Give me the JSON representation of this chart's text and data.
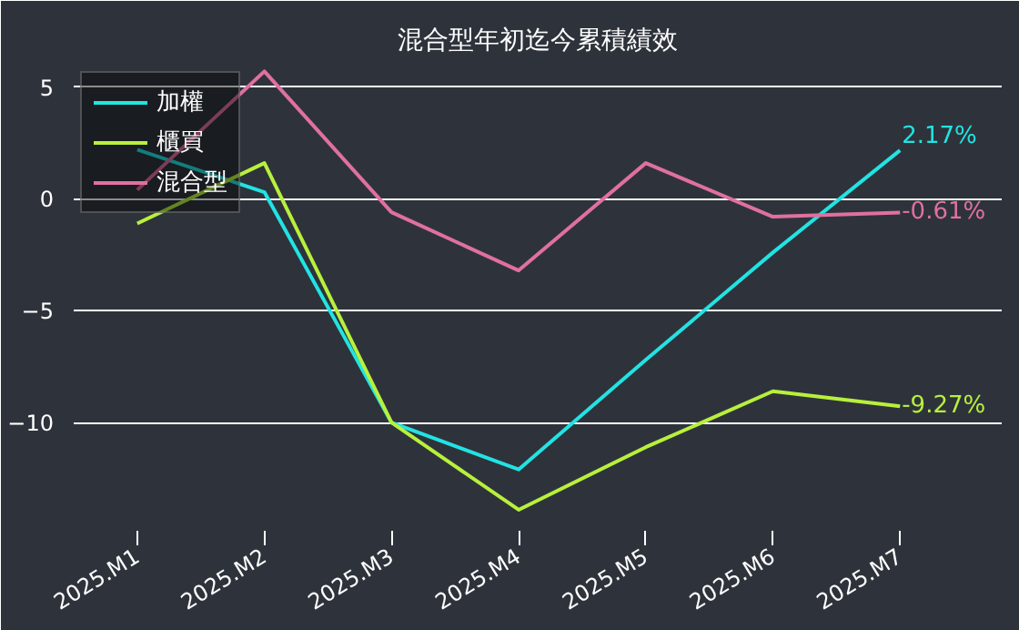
{
  "chart_data": {
    "type": "line",
    "title": "混合型年初迄今累積績效",
    "categories": [
      "2025.M1",
      "2025.M2",
      "2025.M3",
      "2025.M4",
      "2025.M5",
      "2025.M6",
      "2025.M7"
    ],
    "series": [
      {
        "name": "加權",
        "color": "#22e3e3",
        "values": [
          2.2,
          0.3,
          -10.0,
          -12.1,
          -7.2,
          -2.4,
          2.17
        ],
        "value_labels": [
          null,
          null,
          null,
          null,
          null,
          null,
          "2.17%"
        ]
      },
      {
        "name": "櫃買",
        "color": "#b8f03c",
        "values": [
          -1.1,
          1.6,
          -10.0,
          -13.9,
          -11.1,
          -8.6,
          -9.27
        ],
        "value_labels": [
          null,
          null,
          null,
          null,
          null,
          null,
          "-9.27%"
        ]
      },
      {
        "name": "混合型",
        "color": "#e070a0",
        "values": [
          0.4,
          5.7,
          -0.6,
          -3.2,
          1.6,
          -0.8,
          -0.61
        ],
        "value_labels": [
          null,
          null,
          null,
          null,
          null,
          null,
          "-0.61%"
        ]
      }
    ],
    "ylim": [
      -15,
      6
    ],
    "yticks": [
      -10,
      -5,
      0,
      5
    ],
    "grid": "y",
    "legend": "top left",
    "marker": "none",
    "line_style": "solid"
  }
}
